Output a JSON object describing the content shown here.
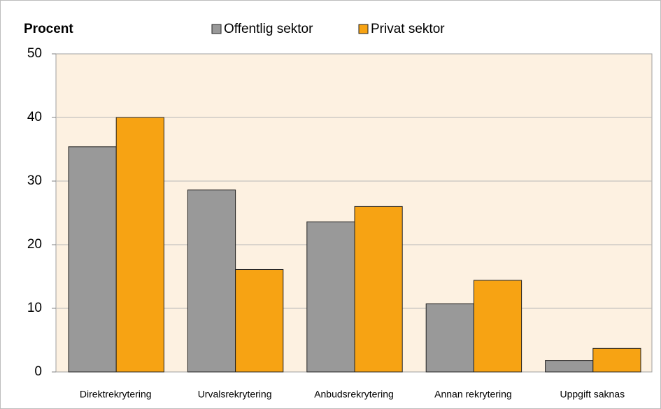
{
  "chart_data": {
    "type": "bar",
    "title": "Procent",
    "categories": [
      "Direktrekrytering",
      "Urvalsrekrytering",
      "Anbudsrekrytering",
      "Annan rekrytering",
      "Uppgift saknas"
    ],
    "series": [
      {
        "name": "Offentlig sektor",
        "color": "#999999",
        "values": [
          35.4,
          28.6,
          23.6,
          10.7,
          1.8
        ]
      },
      {
        "name": "Privat sektor",
        "color": "#f7a313",
        "values": [
          40,
          16.1,
          26,
          14.4,
          3.7
        ]
      }
    ],
    "ylim": [
      0,
      50
    ],
    "yticks": [
      0,
      10,
      20,
      30,
      40,
      50
    ],
    "grid": true
  }
}
